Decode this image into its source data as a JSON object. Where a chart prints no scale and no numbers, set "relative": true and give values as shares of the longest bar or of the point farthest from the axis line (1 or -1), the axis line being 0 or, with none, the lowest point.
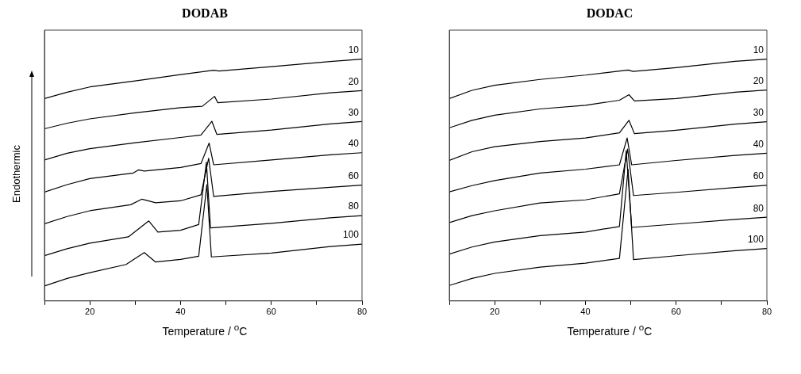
{
  "chart_data": [
    {
      "type": "line",
      "title": "DODAB",
      "xlabel": "Temperature / $^{o}$C",
      "ylabel": "Endothermic",
      "relative": true,
      "xlim": [
        10,
        80
      ],
      "xticks": [
        {
          "value": 10,
          "label": null
        },
        20,
        {
          "value": 30,
          "label": null
        },
        40,
        {
          "value": 50,
          "label": null
        },
        60,
        {
          "value": 70,
          "label": null
        },
        80
      ],
      "tick_labels": "x",
      "marker": "none",
      "line_style": "solid",
      "legend": false,
      "series": [
        {
          "name": "10",
          "color": "#000000",
          "x": [
            10,
            15,
            20,
            30,
            40,
            47.3,
            48.5,
            60,
            73,
            80
          ],
          "values": [
            0.837,
            0.863,
            0.885,
            0.91,
            0.936,
            0.954,
            0.951,
            0.969,
            0.99,
            1.0
          ]
        },
        {
          "name": "20",
          "color": "#000000",
          "x": [
            10,
            15,
            20,
            30,
            40,
            44.8,
            47.5,
            48.2,
            60,
            73,
            80
          ],
          "values": [
            0.712,
            0.735,
            0.753,
            0.778,
            0.799,
            0.805,
            0.846,
            0.82,
            0.835,
            0.861,
            0.87
          ]
        },
        {
          "name": "30",
          "color": "#000000",
          "x": [
            10,
            15,
            20,
            30,
            40,
            44.5,
            46.9,
            48,
            60,
            73,
            80
          ],
          "values": [
            0.583,
            0.611,
            0.63,
            0.654,
            0.676,
            0.686,
            0.743,
            0.689,
            0.707,
            0.732,
            0.742
          ]
        },
        {
          "name": "40",
          "color": "#000000",
          "x": [
            10,
            15,
            20,
            29.6,
            30.7,
            32,
            40,
            44.5,
            46.3,
            47.3,
            60,
            73,
            80
          ],
          "values": [
            0.45,
            0.481,
            0.506,
            0.529,
            0.542,
            0.537,
            0.552,
            0.568,
            0.653,
            0.563,
            0.583,
            0.604,
            0.613
          ]
        },
        {
          "name": "60",
          "color": "#000000",
          "x": [
            10,
            15,
            20,
            29,
            31.5,
            34.5,
            40,
            44.5,
            46.2,
            47.3,
            60,
            73,
            80
          ],
          "values": [
            0.319,
            0.349,
            0.373,
            0.398,
            0.421,
            0.406,
            0.414,
            0.439,
            0.59,
            0.432,
            0.453,
            0.47,
            0.479
          ]
        },
        {
          "name": "80",
          "color": "#000000",
          "x": [
            10,
            15,
            20,
            28.5,
            33,
            35,
            40,
            44,
            45.7,
            46.6,
            60,
            73,
            80
          ],
          "values": [
            0.187,
            0.216,
            0.239,
            0.265,
            0.331,
            0.285,
            0.292,
            0.316,
            0.574,
            0.302,
            0.321,
            0.344,
            0.353
          ]
        },
        {
          "name": "100",
          "color": "#000000",
          "x": [
            10,
            15,
            20,
            28,
            32,
            34.5,
            40,
            44,
            45.8,
            46.8,
            60,
            73,
            80
          ],
          "values": [
            0.062,
            0.093,
            0.117,
            0.151,
            0.2,
            0.161,
            0.172,
            0.185,
            0.481,
            0.182,
            0.198,
            0.225,
            0.235
          ]
        }
      ]
    },
    {
      "type": "line",
      "title": "DODAC",
      "xlabel": "Temperature / $^{o}$C",
      "relative": true,
      "xlim": [
        10,
        80
      ],
      "xticks": [
        {
          "value": 10,
          "label": null
        },
        20,
        {
          "value": 30,
          "label": null
        },
        40,
        {
          "value": 50,
          "label": null
        },
        60,
        {
          "value": 70,
          "label": null
        },
        80
      ],
      "tick_labels": "x",
      "marker": "none",
      "line_style": "solid",
      "legend": false,
      "series": [
        {
          "name": "10",
          "color": "#000000",
          "x": [
            10,
            15,
            20,
            30,
            40,
            49.4,
            50.5,
            60,
            73,
            80
          ],
          "values": [
            0.837,
            0.871,
            0.892,
            0.916,
            0.934,
            0.955,
            0.949,
            0.965,
            0.991,
            1.0
          ]
        },
        {
          "name": "20",
          "color": "#000000",
          "x": [
            10,
            15,
            20,
            30,
            40,
            47.5,
            49.6,
            50.8,
            60,
            73,
            80
          ],
          "values": [
            0.716,
            0.747,
            0.768,
            0.794,
            0.809,
            0.83,
            0.853,
            0.827,
            0.837,
            0.863,
            0.872
          ]
        },
        {
          "name": "30",
          "color": "#000000",
          "x": [
            10,
            15,
            20,
            30,
            40,
            47.5,
            49.6,
            50.8,
            60,
            73,
            80
          ],
          "values": [
            0.581,
            0.617,
            0.638,
            0.659,
            0.674,
            0.695,
            0.747,
            0.692,
            0.706,
            0.731,
            0.741
          ]
        },
        {
          "name": "40",
          "color": "#000000",
          "x": [
            10,
            15,
            20,
            30,
            40,
            47.5,
            49.2,
            50.2,
            60,
            73,
            80
          ],
          "values": [
            0.451,
            0.477,
            0.498,
            0.529,
            0.545,
            0.563,
            0.674,
            0.563,
            0.581,
            0.602,
            0.611
          ]
        },
        {
          "name": "60",
          "color": "#000000",
          "x": [
            10,
            15,
            20,
            30,
            40,
            47.5,
            49.3,
            50.6,
            60,
            73,
            80
          ],
          "values": [
            0.324,
            0.353,
            0.373,
            0.405,
            0.418,
            0.443,
            0.628,
            0.436,
            0.449,
            0.469,
            0.478
          ]
        },
        {
          "name": "80",
          "color": "#000000",
          "x": [
            10,
            15,
            20,
            30,
            40,
            47.5,
            49.0,
            50.2,
            60,
            73,
            80
          ],
          "values": [
            0.194,
            0.223,
            0.244,
            0.27,
            0.285,
            0.308,
            0.622,
            0.304,
            0.318,
            0.337,
            0.346
          ]
        },
        {
          "name": "100",
          "color": "#000000",
          "x": [
            10,
            15,
            20,
            30,
            40,
            47.5,
            49.4,
            50.6,
            60,
            73,
            80
          ],
          "values": [
            0.064,
            0.093,
            0.114,
            0.14,
            0.156,
            0.176,
            0.545,
            0.171,
            0.187,
            0.208,
            0.217
          ]
        }
      ]
    }
  ]
}
